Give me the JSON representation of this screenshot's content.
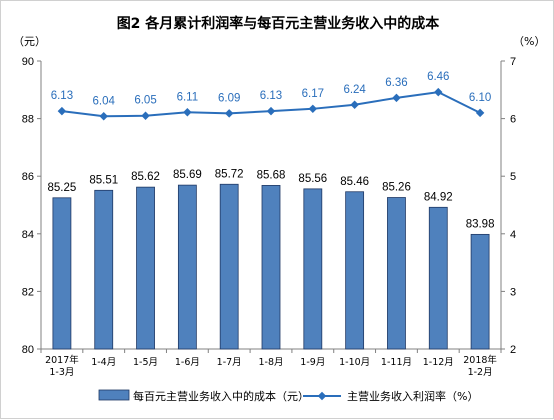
{
  "colors": {
    "bar_fill": "#4f81bd",
    "bar_stroke": "#1f3864",
    "line": "#2a6ebb",
    "line_label": "#2a6ebb",
    "axis": "#808080"
  },
  "chart_data": {
    "type": "bar",
    "title": "图2  各月累计利润率与每百元主营业务收入中的成本",
    "left_unit": "（元）",
    "right_unit": "（%）",
    "categories": [
      [
        "2017年",
        "1-3月"
      ],
      [
        "1-4月"
      ],
      [
        "1-5月"
      ],
      [
        "1-6月"
      ],
      [
        "1-7月"
      ],
      [
        "1-8月"
      ],
      [
        "1-9月"
      ],
      [
        "1-10月"
      ],
      [
        "1-11月"
      ],
      [
        "1-12月"
      ],
      [
        "2018年",
        "1-2月"
      ]
    ],
    "y_left": {
      "min": 80,
      "max": 90,
      "ticks": [
        80,
        82,
        84,
        86,
        88,
        90
      ]
    },
    "y_right": {
      "min": 2,
      "max": 7,
      "ticks": [
        2,
        3,
        4,
        5,
        6,
        7
      ]
    },
    "series": [
      {
        "name": "每百元主营业务收入中的成本（元）",
        "type": "bar",
        "axis": "left",
        "values": [
          85.25,
          85.51,
          85.62,
          85.69,
          85.72,
          85.68,
          85.56,
          85.46,
          85.26,
          84.92,
          83.98
        ],
        "labels": [
          "85.25",
          "85.51",
          "85.62",
          "85.69",
          "85.72",
          "85.68",
          "85.56",
          "85.46",
          "85.26",
          "84.92",
          "83.98"
        ]
      },
      {
        "name": "主营业务收入利润率（%）",
        "type": "line",
        "axis": "right",
        "values": [
          6.13,
          6.04,
          6.05,
          6.11,
          6.09,
          6.13,
          6.17,
          6.24,
          6.36,
          6.46,
          6.1
        ],
        "labels": [
          "6.13",
          "6.04",
          "6.05",
          "6.11",
          "6.09",
          "6.13",
          "6.17",
          "6.24",
          "6.36",
          "6.46",
          "6.10"
        ]
      }
    ],
    "legend": "bottom",
    "grid": false
  }
}
